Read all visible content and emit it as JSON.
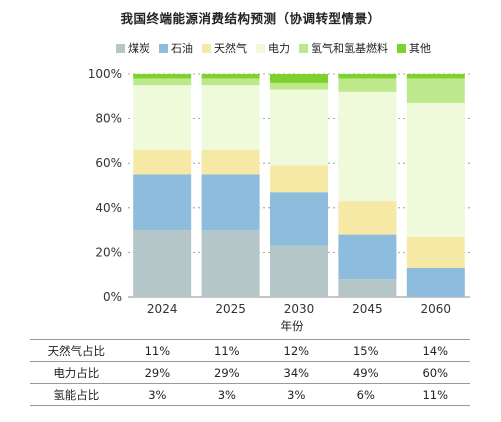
{
  "chart_data": {
    "type": "bar",
    "stacked": true,
    "title": "我国终端能源消费结构预测（协调转型情景）",
    "xlabel": "年份",
    "ylabel": "",
    "ylim": [
      0,
      100
    ],
    "yticks": [
      "0%",
      "20%",
      "40%",
      "60%",
      "80%",
      "100%"
    ],
    "categories": [
      "2024",
      "2025",
      "2030",
      "2045",
      "2060"
    ],
    "legend_position": "top",
    "series": [
      {
        "name": "煤炭",
        "color": "#b5c6c9",
        "values": [
          30,
          30,
          23,
          8,
          0
        ]
      },
      {
        "name": "石油",
        "color": "#8dbcdc",
        "values": [
          25,
          25,
          24,
          20,
          13
        ]
      },
      {
        "name": "天然气",
        "color": "#f6e9a6",
        "values": [
          11,
          11,
          12,
          15,
          14
        ]
      },
      {
        "name": "电力",
        "color": "#eefada",
        "values": [
          29,
          29,
          34,
          49,
          60
        ]
      },
      {
        "name": "氢气和氢基燃料",
        "color": "#bde98c",
        "values": [
          3,
          3,
          3,
          6,
          11
        ]
      },
      {
        "name": "其他",
        "color": "#7ed22e",
        "values": [
          2,
          2,
          4,
          2,
          2
        ]
      }
    ]
  },
  "table": {
    "rows": [
      {
        "label": "天然气占比",
        "cells": [
          "11%",
          "11%",
          "12%",
          "15%",
          "14%"
        ]
      },
      {
        "label": "电力占比",
        "cells": [
          "29%",
          "29%",
          "34%",
          "49%",
          "60%"
        ]
      },
      {
        "label": "氢能占比",
        "cells": [
          "3%",
          "3%",
          "3%",
          "6%",
          "11%"
        ]
      }
    ]
  }
}
